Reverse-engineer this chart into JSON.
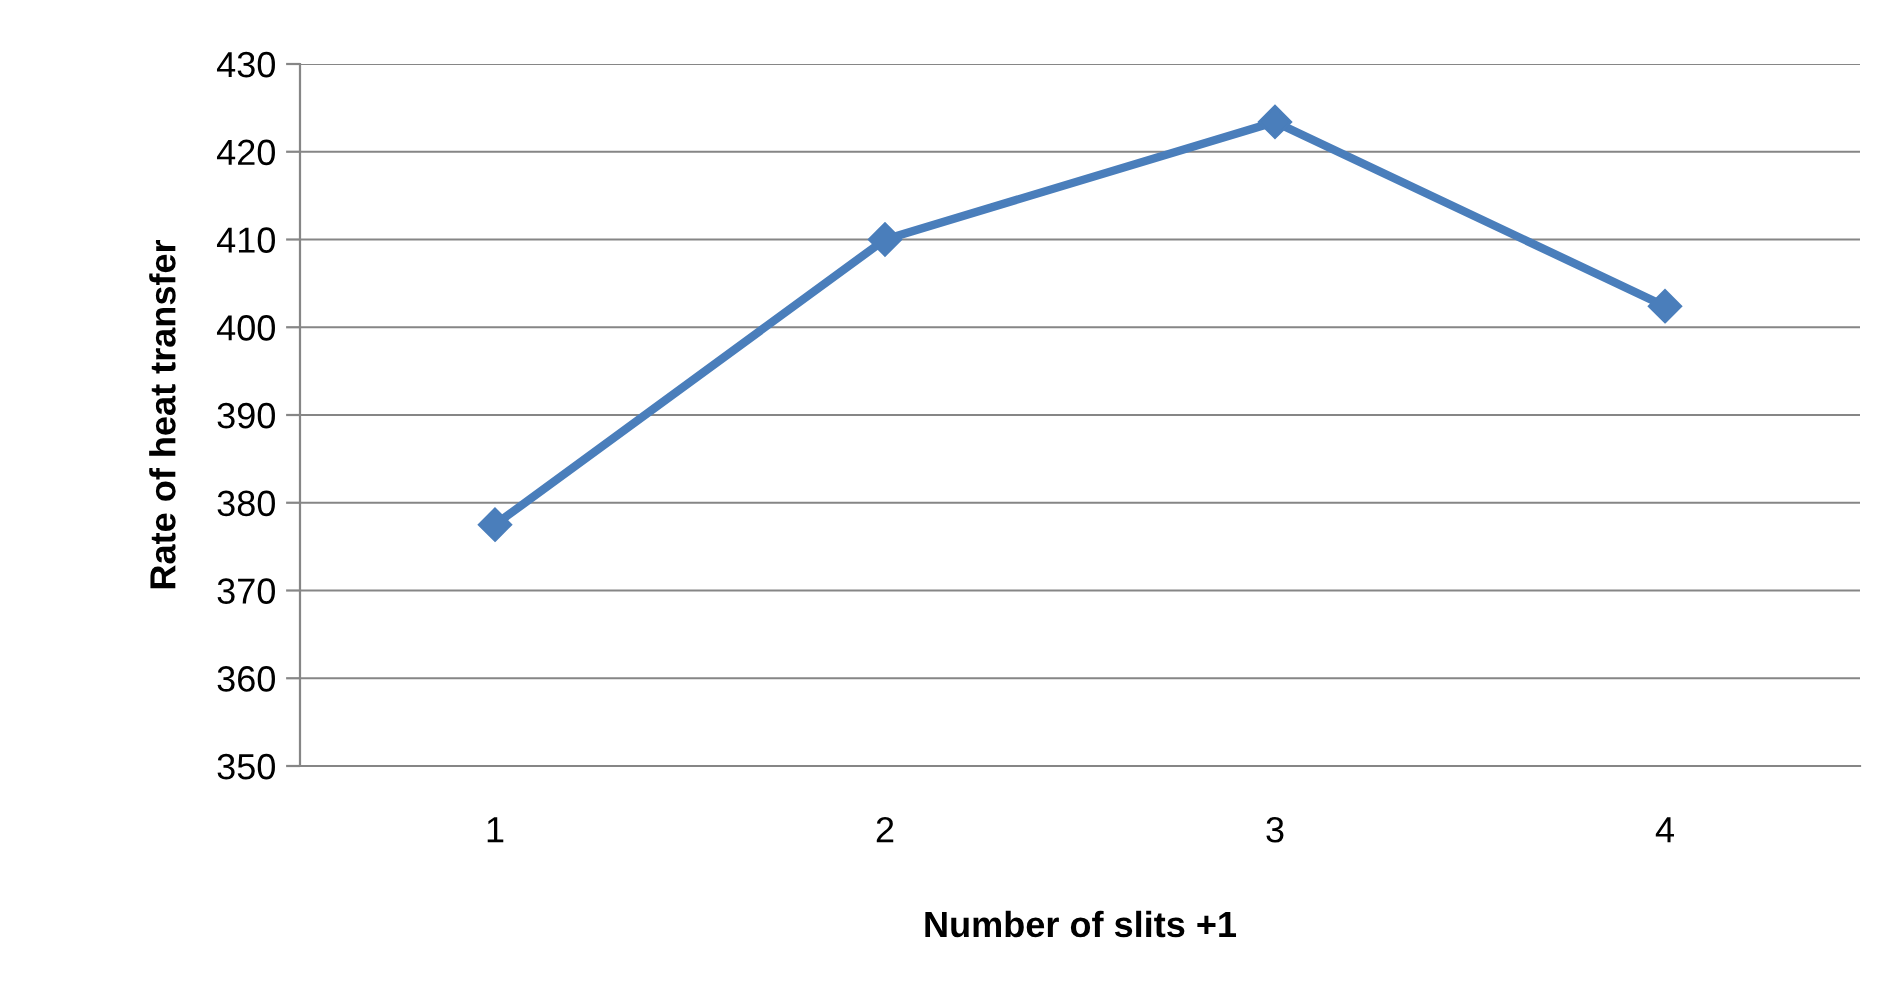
{
  "chart_data": {
    "type": "line",
    "xlabel": "Number of slits +1",
    "ylabel": "Rate of heat transfer",
    "categories": [
      "1",
      "2",
      "3",
      "4"
    ],
    "series": [
      {
        "color": "#4a7ebb",
        "values": [
          377.5,
          410,
          423.4,
          402.4
        ]
      }
    ],
    "ylim": [
      350,
      430
    ],
    "yticks": [
      350,
      360,
      370,
      380,
      390,
      400,
      410,
      420,
      430
    ],
    "grid": "y",
    "marker": "diamond",
    "line_style": "solid",
    "legend": false
  }
}
